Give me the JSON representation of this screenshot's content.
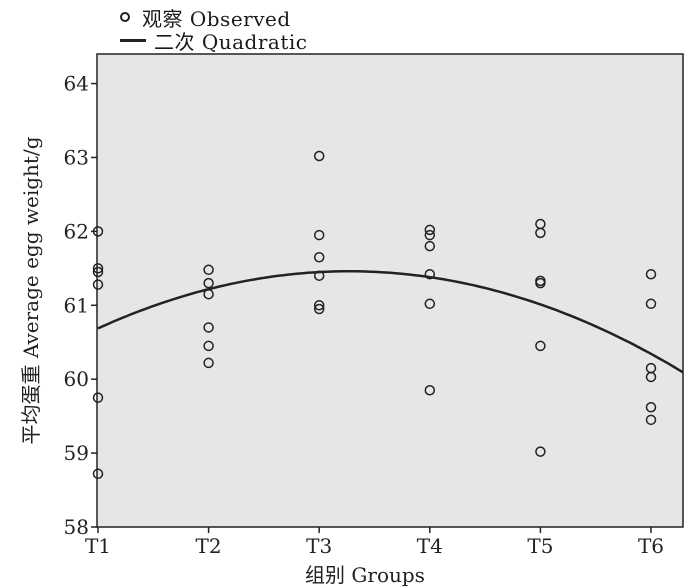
{
  "legend": {
    "observed_label": "观察  Observed",
    "fit_label": "二次  Quadratic"
  },
  "colors": {
    "plot_background": "#e6e6e6",
    "ink": "#222222"
  },
  "chart_data": {
    "type": "scatter",
    "xlabel": "组别  Groups",
    "ylabel": "平均蛋重  Average egg weight/g",
    "categories": [
      "T1",
      "T2",
      "T3",
      "T4",
      "T5",
      "T6"
    ],
    "ylim": [
      58,
      64.4
    ],
    "yticks": [
      58,
      59,
      60,
      61,
      62,
      63,
      64
    ],
    "grid": false,
    "legend_position": "top-left",
    "series": [
      {
        "name": "观察  Observed",
        "kind": "points",
        "points": [
          {
            "x": "T1",
            "y": 62.0
          },
          {
            "x": "T1",
            "y": 61.5
          },
          {
            "x": "T1",
            "y": 61.45
          },
          {
            "x": "T1",
            "y": 61.28
          },
          {
            "x": "T1",
            "y": 59.75
          },
          {
            "x": "T1",
            "y": 58.72
          },
          {
            "x": "T2",
            "y": 61.48
          },
          {
            "x": "T2",
            "y": 61.3
          },
          {
            "x": "T2",
            "y": 61.15
          },
          {
            "x": "T2",
            "y": 60.7
          },
          {
            "x": "T2",
            "y": 60.45
          },
          {
            "x": "T2",
            "y": 60.22
          },
          {
            "x": "T3",
            "y": 63.02
          },
          {
            "x": "T3",
            "y": 61.95
          },
          {
            "x": "T3",
            "y": 61.65
          },
          {
            "x": "T3",
            "y": 61.4
          },
          {
            "x": "T3",
            "y": 61.0
          },
          {
            "x": "T3",
            "y": 60.95
          },
          {
            "x": "T4",
            "y": 62.02
          },
          {
            "x": "T4",
            "y": 61.95
          },
          {
            "x": "T4",
            "y": 61.8
          },
          {
            "x": "T4",
            "y": 61.42
          },
          {
            "x": "T4",
            "y": 61.02
          },
          {
            "x": "T4",
            "y": 59.85
          },
          {
            "x": "T5",
            "y": 62.1
          },
          {
            "x": "T5",
            "y": 61.98
          },
          {
            "x": "T5",
            "y": 61.33
          },
          {
            "x": "T5",
            "y": 61.3
          },
          {
            "x": "T5",
            "y": 60.45
          },
          {
            "x": "T5",
            "y": 59.02
          },
          {
            "x": "T6",
            "y": 61.42
          },
          {
            "x": "T6",
            "y": 61.02
          },
          {
            "x": "T6",
            "y": 60.15
          },
          {
            "x": "T6",
            "y": 60.03
          },
          {
            "x": "T6",
            "y": 59.62
          },
          {
            "x": "T6",
            "y": 59.45
          }
        ]
      },
      {
        "name": "二次  Quadratic",
        "kind": "curve",
        "points": [
          {
            "x": "T1",
            "y": 60.68
          },
          {
            "x": "T2",
            "y": 61.23
          },
          {
            "x": "T3",
            "y": 61.45
          },
          {
            "x": "T4",
            "y": 61.38
          },
          {
            "x": "T5",
            "y": 61.0
          },
          {
            "x": "T6",
            "y": 60.35
          }
        ]
      }
    ]
  }
}
